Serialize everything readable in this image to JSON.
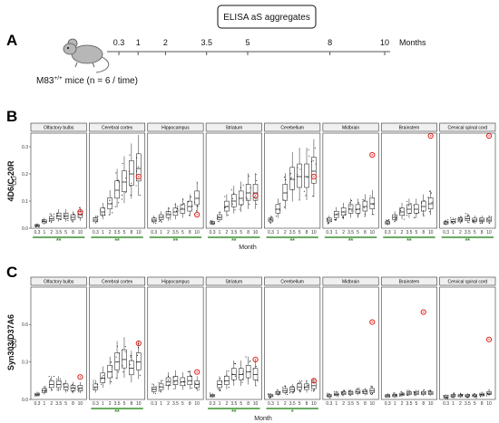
{
  "panels": {
    "a": "A",
    "b": "B",
    "c": "C"
  },
  "timeline": {
    "box_label": "ELISA aS aggregates",
    "ticks": [
      "0.3",
      "1",
      "2",
      "3.5",
      "5",
      "8",
      "10"
    ],
    "unit": "Months",
    "mice_main": "M83",
    "mice_sup": "+/+",
    "mice_rest": " mice (n = 6 / time)"
  },
  "x_axis_title": "Month",
  "y_axis_short": "OD",
  "regions": [
    "Olfactory bulbs",
    "Cerebral cortex",
    "Hippocampus",
    "Striatum",
    "Cerebellum",
    "Midbrain",
    "Brainstem",
    "Cervical spinal cord"
  ],
  "colors": {
    "significance": "#3a8f2e",
    "outlier": "#e0201b",
    "box": "#222222",
    "facet_strip": "#f0f0f0"
  },
  "chart_data": [
    {
      "type": "box",
      "antibody": "4D6/C-20R",
      "ylabel": "OD",
      "ylim": [
        0,
        0.35
      ],
      "yticks": [
        0.0,
        0.1,
        0.2,
        0.3
      ],
      "ytick_labels": [
        "0.0",
        "0.1",
        "0.2",
        "0.3"
      ],
      "x": [
        "0.3",
        "1",
        "2",
        "3.5",
        "5",
        "8",
        "10"
      ],
      "series": [
        {
          "name": "Olfactory bulbs",
          "medians": [
            0.01,
            0.025,
            0.035,
            0.045,
            0.045,
            0.04,
            0.05
          ],
          "outlier": [
            0.06,
            "10"
          ],
          "significance": "**"
        },
        {
          "name": "Cerebral cortex",
          "medians": [
            0.03,
            0.06,
            0.09,
            0.14,
            0.17,
            0.2,
            0.22
          ],
          "outlier": [
            0.19,
            "10"
          ],
          "significance": "**"
        },
        {
          "name": "Hippocampus",
          "medians": [
            0.03,
            0.04,
            0.05,
            0.06,
            0.07,
            0.08,
            0.11
          ],
          "outlier": [
            0.05,
            "10"
          ],
          "significance": "**"
        },
        {
          "name": "Striatum",
          "medians": [
            0.02,
            0.04,
            0.08,
            0.1,
            0.11,
            0.13,
            0.13
          ],
          "outlier": [
            0.12,
            "10"
          ],
          "significance": "**"
        },
        {
          "name": "Cerebellum",
          "medians": [
            0.03,
            0.07,
            0.13,
            0.18,
            0.19,
            0.19,
            0.21
          ],
          "outlier": [
            0.19,
            "10"
          ],
          "significance": "**"
        },
        {
          "name": "Midbrain",
          "medians": [
            0.03,
            0.05,
            0.06,
            0.07,
            0.07,
            0.08,
            0.09
          ],
          "outlier": [
            0.27,
            "10"
          ],
          "significance": "**"
        },
        {
          "name": "Brainstem",
          "medians": [
            0.02,
            0.04,
            0.06,
            0.07,
            0.07,
            0.08,
            0.09
          ],
          "outlier": [
            0.34,
            "10"
          ],
          "significance": "**"
        },
        {
          "name": "Cervical spinal cord",
          "medians": [
            0.02,
            0.025,
            0.03,
            0.035,
            0.03,
            0.03,
            0.03
          ],
          "outlier": [
            0.34,
            "10"
          ],
          "significance": "**"
        }
      ]
    },
    {
      "type": "box",
      "antibody": "Syn303/D37A6",
      "ylabel": "OD",
      "ylim": [
        0,
        0.9
      ],
      "yticks": [
        0.0,
        0.3,
        0.6
      ],
      "ytick_labels": [
        "0.0",
        "0.3",
        "0.6"
      ],
      "x": [
        "0.3",
        "1",
        "2",
        "3.5",
        "5",
        "8",
        "10"
      ],
      "series": [
        {
          "name": "Olfactory bulbs",
          "medians": [
            0.04,
            0.07,
            0.12,
            0.12,
            0.1,
            0.09,
            0.09
          ],
          "outlier": [
            0.18,
            "10"
          ],
          "significance": ""
        },
        {
          "name": "Cerebral cortex",
          "medians": [
            0.1,
            0.17,
            0.22,
            0.3,
            0.32,
            0.25,
            0.3
          ],
          "outlier": [
            0.45,
            "10"
          ],
          "significance": "**"
        },
        {
          "name": "Hippocampus",
          "medians": [
            0.08,
            0.1,
            0.14,
            0.15,
            0.14,
            0.15,
            0.12
          ],
          "outlier": [
            0.22,
            "10"
          ],
          "significance": ""
        },
        {
          "name": "Striatum",
          "medians": [
            0.03,
            0.12,
            0.15,
            0.2,
            0.2,
            0.22,
            0.2
          ],
          "outlier": [
            0.32,
            "10"
          ],
          "significance": "**"
        },
        {
          "name": "Cerebellum",
          "medians": [
            0.03,
            0.05,
            0.07,
            0.08,
            0.1,
            0.1,
            0.11
          ],
          "outlier": [
            0.15,
            "10"
          ],
          "significance": "*"
        },
        {
          "name": "Midbrain",
          "medians": [
            0.03,
            0.04,
            0.05,
            0.05,
            0.06,
            0.06,
            0.07
          ],
          "outlier": [
            0.62,
            "10"
          ],
          "significance": ""
        },
        {
          "name": "Brainstem",
          "medians": [
            0.03,
            0.03,
            0.04,
            0.05,
            0.05,
            0.05,
            0.05
          ],
          "outlier": [
            0.7,
            "8"
          ],
          "significance": ""
        },
        {
          "name": "Cervical spinal cord",
          "medians": [
            0.02,
            0.03,
            0.03,
            0.03,
            0.03,
            0.04,
            0.05
          ],
          "outlier": [
            0.48,
            "10"
          ],
          "significance": ""
        }
      ]
    }
  ]
}
